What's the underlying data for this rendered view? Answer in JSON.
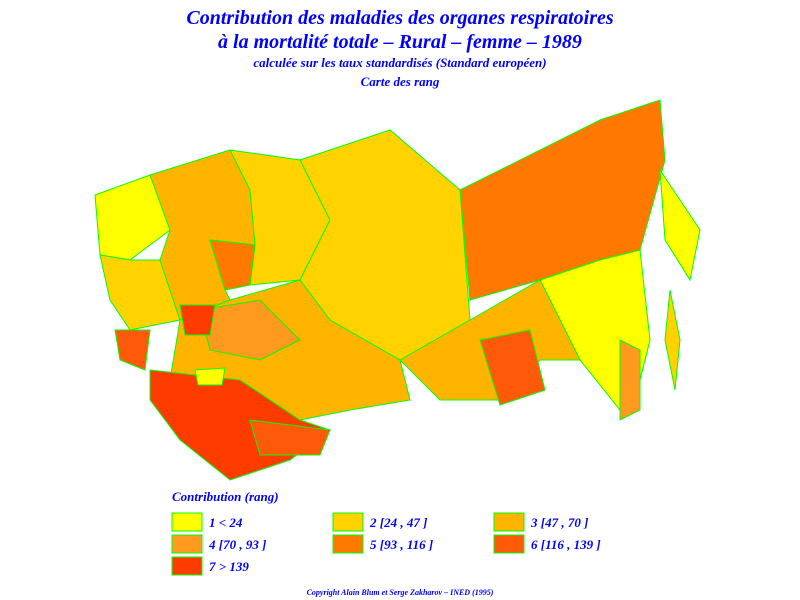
{
  "header": {
    "title_line1": "Contribution des maladies des organes respiratoires",
    "title_line2": "à la mortalité totale – Rural – femme – 1989",
    "subtitle": "calculée sur les taux standardisés (Standard européen)",
    "map_name": "Carte des rang"
  },
  "legend": {
    "title": "Contribution (rang)",
    "items": [
      {
        "label": "1  <  24",
        "color": "#ffff00"
      },
      {
        "label": "2 [24 , 47 ]",
        "color": "#ffd200"
      },
      {
        "label": "3 [47 , 70 ]",
        "color": "#ffb400"
      },
      {
        "label": "4 [70 , 93 ]",
        "color": "#ff9a1e"
      },
      {
        "label": "5 [93 , 116 ]",
        "color": "#ff7800"
      },
      {
        "label": "6 [116 , 139 ]",
        "color": "#ff5a0a"
      },
      {
        "label": "7  >  139",
        "color": "#ff3c00"
      }
    ]
  },
  "footer": {
    "copyright": "Copyright Alain Blum et Serge Zakharov – INED (1995)"
  }
}
